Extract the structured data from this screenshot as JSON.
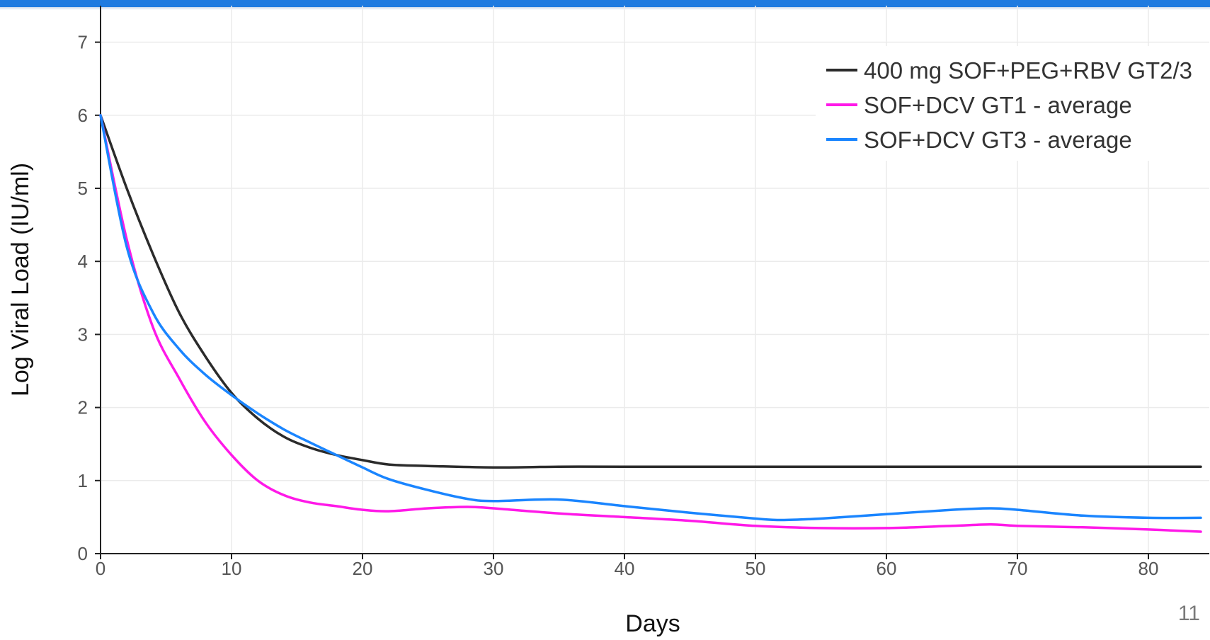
{
  "slide_number": "11",
  "chart_data": {
    "type": "line",
    "title": "",
    "xlabel": "Days",
    "ylabel": "Log Viral Load (IU/ml)",
    "xlim": [
      0,
      84
    ],
    "ylim": [
      0,
      7.5
    ],
    "x_ticks": [
      0,
      10,
      20,
      30,
      40,
      50,
      60,
      70,
      80
    ],
    "y_ticks": [
      0,
      1,
      2,
      3,
      4,
      5,
      6,
      7
    ],
    "grid": true,
    "legend_position": "top-right",
    "series": [
      {
        "name": "400 mg SOF+PEG+RBV GT2/3",
        "color": "#2b2b2b",
        "points": [
          [
            0,
            6.0
          ],
          [
            2,
            5.0
          ],
          [
            4,
            4.1
          ],
          [
            6,
            3.3
          ],
          [
            8,
            2.7
          ],
          [
            10,
            2.2
          ],
          [
            12,
            1.85
          ],
          [
            14,
            1.6
          ],
          [
            16,
            1.45
          ],
          [
            18,
            1.35
          ],
          [
            20,
            1.28
          ],
          [
            22,
            1.22
          ],
          [
            25,
            1.2
          ],
          [
            30,
            1.18
          ],
          [
            35,
            1.19
          ],
          [
            40,
            1.19
          ],
          [
            50,
            1.19
          ],
          [
            60,
            1.19
          ],
          [
            70,
            1.19
          ],
          [
            80,
            1.19
          ],
          [
            84,
            1.19
          ]
        ]
      },
      {
        "name": "SOF+DCV GT1 - average",
        "color": "#ff19e8",
        "points": [
          [
            0,
            6.0
          ],
          [
            2,
            4.3
          ],
          [
            4,
            3.1
          ],
          [
            6,
            2.4
          ],
          [
            8,
            1.8
          ],
          [
            10,
            1.35
          ],
          [
            12,
            1.0
          ],
          [
            14,
            0.8
          ],
          [
            16,
            0.7
          ],
          [
            18,
            0.65
          ],
          [
            20,
            0.6
          ],
          [
            22,
            0.58
          ],
          [
            25,
            0.62
          ],
          [
            28,
            0.64
          ],
          [
            30,
            0.62
          ],
          [
            35,
            0.55
          ],
          [
            40,
            0.5
          ],
          [
            45,
            0.45
          ],
          [
            50,
            0.38
          ],
          [
            55,
            0.35
          ],
          [
            60,
            0.35
          ],
          [
            65,
            0.38
          ],
          [
            68,
            0.4
          ],
          [
            70,
            0.38
          ],
          [
            75,
            0.36
          ],
          [
            80,
            0.33
          ],
          [
            84,
            0.3
          ]
        ]
      },
      {
        "name": "SOF+DCV GT3 - average",
        "color": "#1a85ff",
        "points": [
          [
            0,
            6.0
          ],
          [
            2,
            4.2
          ],
          [
            4,
            3.3
          ],
          [
            6,
            2.8
          ],
          [
            8,
            2.45
          ],
          [
            10,
            2.17
          ],
          [
            12,
            1.92
          ],
          [
            14,
            1.7
          ],
          [
            16,
            1.52
          ],
          [
            18,
            1.35
          ],
          [
            20,
            1.18
          ],
          [
            22,
            1.02
          ],
          [
            25,
            0.87
          ],
          [
            28,
            0.75
          ],
          [
            30,
            0.72
          ],
          [
            35,
            0.74
          ],
          [
            40,
            0.65
          ],
          [
            45,
            0.56
          ],
          [
            50,
            0.48
          ],
          [
            52,
            0.46
          ],
          [
            55,
            0.48
          ],
          [
            60,
            0.54
          ],
          [
            65,
            0.6
          ],
          [
            68,
            0.62
          ],
          [
            70,
            0.6
          ],
          [
            75,
            0.52
          ],
          [
            80,
            0.49
          ],
          [
            84,
            0.49
          ]
        ]
      }
    ]
  }
}
